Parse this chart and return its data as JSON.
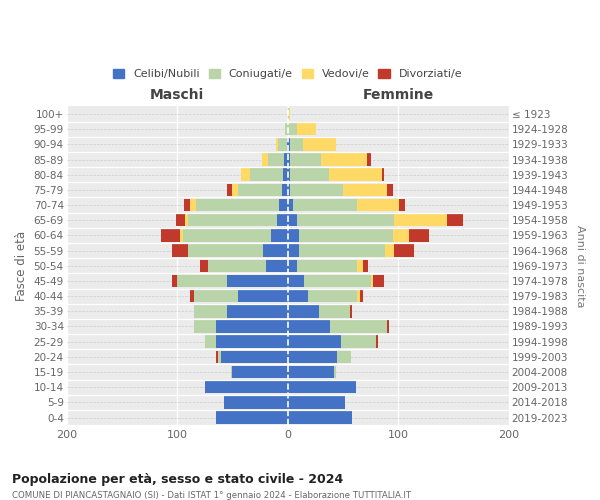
{
  "age_groups": [
    "0-4",
    "5-9",
    "10-14",
    "15-19",
    "20-24",
    "25-29",
    "30-34",
    "35-39",
    "40-44",
    "45-49",
    "50-54",
    "55-59",
    "60-64",
    "65-69",
    "70-74",
    "75-79",
    "80-84",
    "85-89",
    "90-94",
    "95-99",
    "100+"
  ],
  "birth_years": [
    "2019-2023",
    "2014-2018",
    "2009-2013",
    "2004-2008",
    "1999-2003",
    "1994-1998",
    "1989-1993",
    "1984-1988",
    "1979-1983",
    "1974-1978",
    "1969-1973",
    "1964-1968",
    "1959-1963",
    "1954-1958",
    "1949-1953",
    "1944-1948",
    "1939-1943",
    "1934-1938",
    "1929-1933",
    "1924-1928",
    "≤ 1923"
  ],
  "males": {
    "celibi": [
      65,
      58,
      75,
      50,
      60,
      65,
      65,
      55,
      45,
      55,
      20,
      22,
      15,
      10,
      8,
      5,
      4,
      3,
      1,
      0,
      0
    ],
    "coniugati": [
      0,
      0,
      0,
      1,
      3,
      10,
      20,
      30,
      40,
      45,
      52,
      68,
      80,
      80,
      75,
      40,
      30,
      15,
      8,
      2,
      0
    ],
    "vedovi": [
      0,
      0,
      0,
      0,
      0,
      0,
      0,
      0,
      0,
      0,
      0,
      0,
      2,
      3,
      5,
      5,
      8,
      5,
      2,
      0,
      0
    ],
    "divorziati": [
      0,
      0,
      0,
      0,
      2,
      0,
      0,
      0,
      3,
      5,
      7,
      15,
      18,
      8,
      6,
      5,
      0,
      0,
      0,
      0,
      0
    ]
  },
  "females": {
    "nubili": [
      58,
      52,
      62,
      42,
      45,
      48,
      38,
      28,
      18,
      15,
      8,
      10,
      10,
      8,
      5,
      2,
      2,
      2,
      2,
      0,
      0
    ],
    "coniugate": [
      0,
      0,
      0,
      2,
      12,
      32,
      52,
      28,
      45,
      60,
      55,
      78,
      85,
      88,
      58,
      48,
      35,
      28,
      12,
      8,
      1
    ],
    "vedove": [
      0,
      0,
      0,
      0,
      0,
      0,
      0,
      0,
      2,
      2,
      5,
      8,
      15,
      48,
      38,
      40,
      48,
      42,
      30,
      18,
      1
    ],
    "divorziate": [
      0,
      0,
      0,
      0,
      0,
      2,
      2,
      2,
      3,
      10,
      5,
      18,
      18,
      15,
      5,
      5,
      2,
      3,
      0,
      0,
      0
    ]
  },
  "colors": {
    "celibi": "#4472c4",
    "coniugati": "#b8d4a8",
    "vedovi": "#ffd966",
    "divorziati": "#c0392b"
  },
  "xlim": 200,
  "title": "Popolazione per età, sesso e stato civile - 2024",
  "subtitle": "COMUNE DI PIANCASTAGNAIO (SI) - Dati ISTAT 1° gennaio 2024 - Elaborazione TUTTITALIA.IT",
  "ylabel_left": "Fasce di età",
  "ylabel_right": "Anni di nascita",
  "xlabel_left": "Maschi",
  "xlabel_right": "Femmine",
  "legend_labels": [
    "Celibi/Nubili",
    "Coniugati/e",
    "Vedovi/e",
    "Divorziati/e"
  ],
  "bg_color": "#ebebeb",
  "bar_height": 0.82
}
